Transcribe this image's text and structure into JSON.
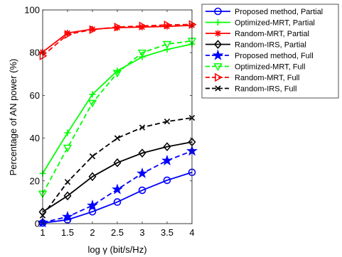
{
  "chart_data": {
    "type": "line",
    "title": "",
    "xlabel": "log γ (bit/s/Hz)",
    "ylabel": "Percentage of AN power (%)",
    "xlim": [
      1,
      4
    ],
    "ylim": [
      0,
      100
    ],
    "xticks": [
      1,
      1.5,
      2,
      2.5,
      3,
      3.5,
      4
    ],
    "yticks": [
      0,
      20,
      40,
      60,
      80,
      100
    ],
    "grid": false,
    "legend_position": "outside-right",
    "x": [
      1,
      1.5,
      2,
      2.5,
      3,
      3.5,
      4
    ],
    "series": [
      {
        "name": "Proposed method, Partial",
        "values": [
          0.3,
          1.8,
          5.6,
          10.1,
          15.6,
          20.3,
          24.0
        ],
        "color": "#0000ff",
        "dash": "solid",
        "marker": "circle"
      },
      {
        "name": "Optimized-MRT, Partial",
        "values": [
          23.5,
          42.5,
          60.5,
          71.5,
          78.0,
          81.5,
          84.0
        ],
        "color": "#00ff00",
        "dash": "solid",
        "marker": "plus"
      },
      {
        "name": "Random-MRT, Partial",
        "values": [
          80.3,
          89.2,
          91.0,
          91.7,
          92.0,
          92.3,
          92.8
        ],
        "color": "#ff0000",
        "dash": "solid",
        "marker": "asterisk"
      },
      {
        "name": "Random-IRS, Partial",
        "values": [
          5.5,
          13.0,
          22.0,
          28.5,
          33.0,
          36.0,
          38.2
        ],
        "color": "#000000",
        "dash": "solid",
        "marker": "diamond"
      },
      {
        "name": "Proposed method, Full",
        "values": [
          0.5,
          3.2,
          8.5,
          16.0,
          23.5,
          29.5,
          34.0
        ],
        "color": "#0000ff",
        "dash": "dashed",
        "marker": "star"
      },
      {
        "name": "Optimized-MRT, Full",
        "values": [
          14.0,
          35.5,
          56.5,
          70.5,
          80.0,
          84.0,
          85.5
        ],
        "color": "#00ff00",
        "dash": "dashed",
        "marker": "triangle-down"
      },
      {
        "name": "Random-MRT, Full",
        "values": [
          78.5,
          88.5,
          90.8,
          92.0,
          92.5,
          93.0,
          93.2
        ],
        "color": "#ff0000",
        "dash": "dashed",
        "marker": "triangle-right"
      },
      {
        "name": "Random-IRS, Full",
        "values": [
          3.8,
          19.5,
          31.5,
          40.0,
          45.0,
          47.8,
          49.5
        ],
        "color": "#000000",
        "dash": "dashed",
        "marker": "cross"
      }
    ]
  }
}
